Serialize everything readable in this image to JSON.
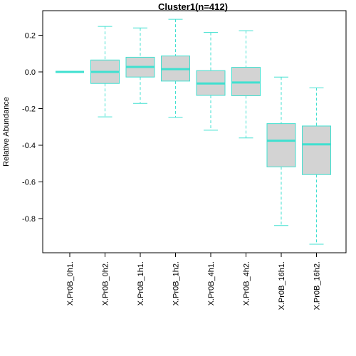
{
  "chart_data": {
    "type": "boxplot",
    "title": "Cluster1(n=412)",
    "xlabel": "",
    "ylabel": "Relative Abundance",
    "ylim": [
      -0.95,
      0.3
    ],
    "yticks": [
      0.2,
      0.0,
      -0.2,
      -0.4,
      -0.6,
      -0.8
    ],
    "ytick_labels": [
      "0.2",
      "0.0",
      "-0.2",
      "-0.4",
      "-0.6",
      "-0.8"
    ],
    "categories": [
      "X.Pr0B_0h1.",
      "X.Pr0B_0h2.",
      "X.Pr0B_1h1.",
      "X.Pr0B_1h2.",
      "X.Pr0B_4h1.",
      "X.Pr0B_4h2.",
      "X.Pr0B_16h1.",
      "X.Pr0B_16h2."
    ],
    "boxes": [
      {
        "whisker_low": 0.0,
        "q1": 0.0,
        "median": 0.0,
        "q3": 0.0,
        "whisker_high": 0.0
      },
      {
        "whisker_low": -0.245,
        "q1": -0.063,
        "median": 0.0,
        "q3": 0.065,
        "whisker_high": 0.248
      },
      {
        "whisker_low": -0.172,
        "q1": -0.028,
        "median": 0.027,
        "q3": 0.08,
        "whisker_high": 0.24
      },
      {
        "whisker_low": -0.248,
        "q1": -0.05,
        "median": 0.015,
        "q3": 0.087,
        "whisker_high": 0.287
      },
      {
        "whisker_low": -0.318,
        "q1": -0.128,
        "median": -0.063,
        "q3": 0.007,
        "whisker_high": 0.215
      },
      {
        "whisker_low": -0.36,
        "q1": -0.13,
        "median": -0.058,
        "q3": 0.025,
        "whisker_high": 0.225
      },
      {
        "whisker_low": -0.838,
        "q1": -0.518,
        "median": -0.375,
        "q3": -0.282,
        "whisker_high": -0.028
      },
      {
        "whisker_low": -0.94,
        "q1": -0.56,
        "median": -0.395,
        "q3": -0.295,
        "whisker_high": -0.087
      }
    ],
    "colors": {
      "box_fill": "#d3d3d3",
      "box_line": "#40e0d0",
      "axis": "#000000"
    },
    "grid": false,
    "legend": "none"
  }
}
